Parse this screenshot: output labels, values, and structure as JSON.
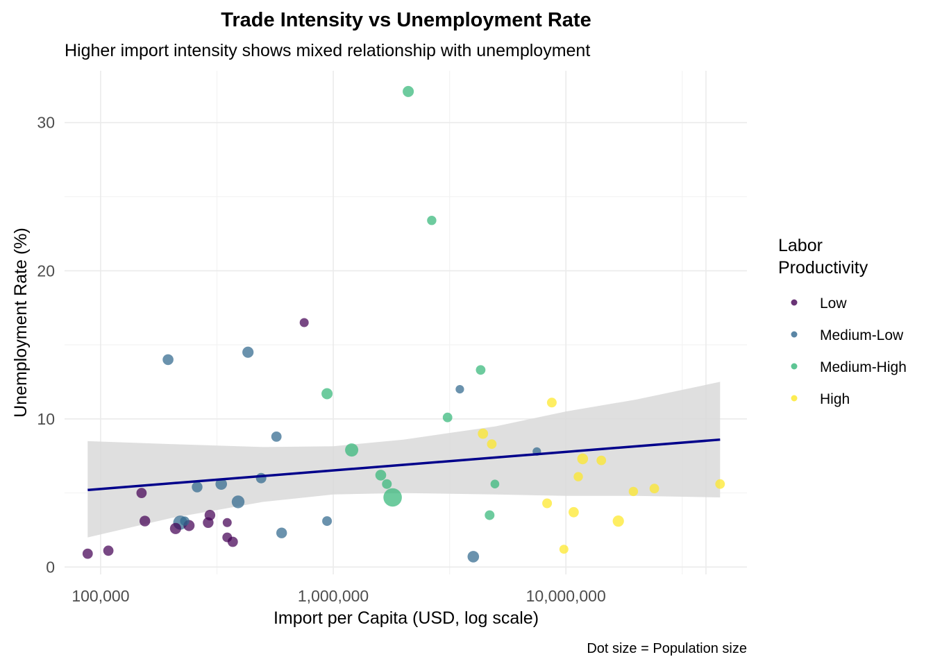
{
  "chart_data": {
    "type": "scatter",
    "title": "Trade Intensity vs Unemployment Rate",
    "subtitle": "Higher import intensity shows mixed relationship with unemployment",
    "xlabel": "Import per Capita (USD, log scale)",
    "ylabel": "Unemployment Rate (%)",
    "caption": "Dot size = Population size",
    "x_scale": "log10",
    "xlim": [
      70000,
      60000000
    ],
    "ylim": [
      -0.5,
      33.5
    ],
    "x_ticks": [
      100000,
      1000000,
      10000000
    ],
    "x_tick_labels": [
      "100,000",
      "1,000,000",
      "10,000,000"
    ],
    "y_ticks": [
      0,
      10,
      20,
      30
    ],
    "y_tick_labels": [
      "0",
      "10",
      "20",
      "30"
    ],
    "grid": true,
    "legend": {
      "title_lines": [
        "Labor",
        "Productivity"
      ],
      "position": "right",
      "entries": [
        {
          "label": "Low",
          "color": "#440154"
        },
        {
          "label": "Medium-Low",
          "color": "#31688e"
        },
        {
          "label": "Medium-High",
          "color": "#35b779"
        },
        {
          "label": "High",
          "color": "#fde725"
        }
      ]
    },
    "trend": {
      "type": "linear",
      "color": "#00008b",
      "band_color": "#d9d9d9",
      "x": [
        88000,
        46000000
      ],
      "y": [
        5.2,
        8.6
      ],
      "ci_lower": [
        [
          88000,
          2.0
        ],
        [
          200000,
          3.3
        ],
        [
          500000,
          4.4
        ],
        [
          1000000,
          4.9
        ],
        [
          2000000,
          5.0
        ],
        [
          5000000,
          4.9
        ],
        [
          10000000,
          4.8
        ],
        [
          20000000,
          4.8
        ],
        [
          46000000,
          4.7
        ]
      ],
      "ci_upper": [
        [
          88000,
          8.5
        ],
        [
          200000,
          8.3
        ],
        [
          500000,
          8.1
        ],
        [
          1000000,
          8.15
        ],
        [
          2000000,
          8.6
        ],
        [
          5000000,
          9.5
        ],
        [
          10000000,
          10.5
        ],
        [
          20000000,
          11.3
        ],
        [
          46000000,
          12.5
        ]
      ]
    },
    "series": [
      {
        "name": "Low",
        "color": "#440154",
        "points": [
          {
            "x": 88000,
            "y": 0.9,
            "size": 2
          },
          {
            "x": 108000,
            "y": 1.1,
            "size": 2
          },
          {
            "x": 150000,
            "y": 5.0,
            "size": 2
          },
          {
            "x": 155000,
            "y": 3.1,
            "size": 2.2
          },
          {
            "x": 210000,
            "y": 2.6,
            "size": 2.5
          },
          {
            "x": 240000,
            "y": 2.8,
            "size": 2.4
          },
          {
            "x": 290000,
            "y": 3.0,
            "size": 2.2
          },
          {
            "x": 295000,
            "y": 3.5,
            "size": 2.2
          },
          {
            "x": 350000,
            "y": 2.0,
            "size": 1.8
          },
          {
            "x": 350000,
            "y": 3.0,
            "size": 1.5
          },
          {
            "x": 370000,
            "y": 1.7,
            "size": 2
          },
          {
            "x": 750000,
            "y": 16.5,
            "size": 1.5
          }
        ]
      },
      {
        "name": "Medium-Low",
        "color": "#31688e",
        "points": [
          {
            "x": 195000,
            "y": 14.0,
            "size": 2.3
          },
          {
            "x": 220000,
            "y": 3.0,
            "size": 4.2
          },
          {
            "x": 230000,
            "y": 3.1,
            "size": 1.6
          },
          {
            "x": 260000,
            "y": 5.4,
            "size": 2.2
          },
          {
            "x": 330000,
            "y": 5.6,
            "size": 2.6
          },
          {
            "x": 390000,
            "y": 4.4,
            "size": 3.3
          },
          {
            "x": 430000,
            "y": 14.5,
            "size": 2.5
          },
          {
            "x": 490000,
            "y": 6.0,
            "size": 2.1
          },
          {
            "x": 570000,
            "y": 8.8,
            "size": 2.0
          },
          {
            "x": 600000,
            "y": 2.3,
            "size": 2.2
          },
          {
            "x": 940000,
            "y": 3.1,
            "size": 1.8
          },
          {
            "x": 3500000,
            "y": 12.0,
            "size": 1.3
          },
          {
            "x": 4000000,
            "y": 0.7,
            "size": 2.6
          },
          {
            "x": 7500000,
            "y": 7.8,
            "size": 1.3
          }
        ]
      },
      {
        "name": "Medium-High",
        "color": "#35b779",
        "points": [
          {
            "x": 940000,
            "y": 11.7,
            "size": 2.4
          },
          {
            "x": 1200000,
            "y": 7.9,
            "size": 3.6
          },
          {
            "x": 1600000,
            "y": 6.2,
            "size": 2.3
          },
          {
            "x": 1700000,
            "y": 5.6,
            "size": 1.8
          },
          {
            "x": 1800000,
            "y": 4.7,
            "size": 7.5
          },
          {
            "x": 2100000,
            "y": 32.1,
            "size": 2.4
          },
          {
            "x": 2650000,
            "y": 23.4,
            "size": 1.6
          },
          {
            "x": 3100000,
            "y": 10.1,
            "size": 1.7
          },
          {
            "x": 4300000,
            "y": 13.3,
            "size": 1.7
          },
          {
            "x": 4700000,
            "y": 3.5,
            "size": 1.8
          },
          {
            "x": 4950000,
            "y": 5.6,
            "size": 1.4
          }
        ]
      },
      {
        "name": "High",
        "color": "#fde725",
        "points": [
          {
            "x": 4400000,
            "y": 9.0,
            "size": 2.0
          },
          {
            "x": 4800000,
            "y": 8.3,
            "size": 1.7
          },
          {
            "x": 8300000,
            "y": 4.3,
            "size": 1.8
          },
          {
            "x": 8700000,
            "y": 11.1,
            "size": 1.8
          },
          {
            "x": 9800000,
            "y": 1.2,
            "size": 1.5
          },
          {
            "x": 10800000,
            "y": 3.7,
            "size": 2.0
          },
          {
            "x": 11300000,
            "y": 6.1,
            "size": 1.6
          },
          {
            "x": 11800000,
            "y": 7.3,
            "size": 2.3
          },
          {
            "x": 14200000,
            "y": 7.2,
            "size": 1.7
          },
          {
            "x": 16800000,
            "y": 3.1,
            "size": 2.5
          },
          {
            "x": 19500000,
            "y": 5.1,
            "size": 1.6
          },
          {
            "x": 24000000,
            "y": 5.3,
            "size": 1.7
          },
          {
            "x": 46000000,
            "y": 5.6,
            "size": 1.7
          }
        ]
      }
    ]
  }
}
